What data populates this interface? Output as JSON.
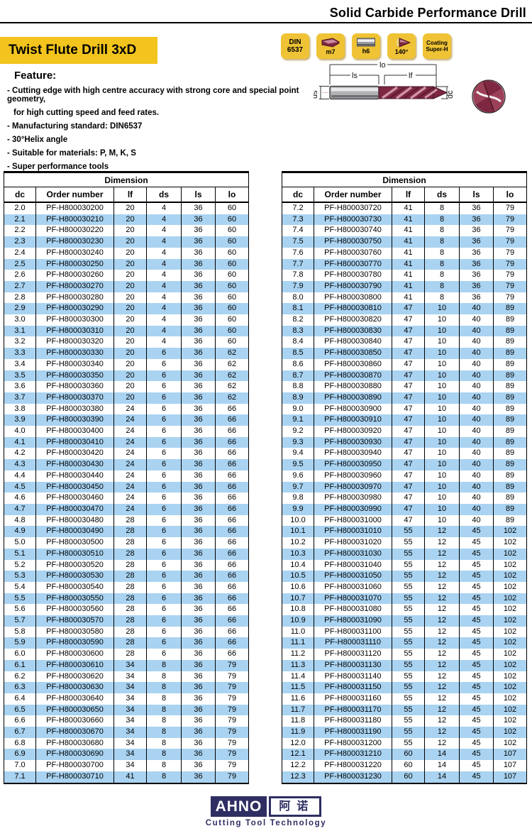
{
  "colors": {
    "accent_yellow": "#f2c41d",
    "badge_yellow": "#efc335",
    "row_blue": "#a9d3f1",
    "logo_navy": "#2e2e63",
    "drill_maroon": "#7e2741"
  },
  "header": {
    "title": "Solid Carbide Performance Drill"
  },
  "product": {
    "title": "Twist Flute Drill 3xD"
  },
  "badges": [
    {
      "line1": "DIN",
      "line2": "6537"
    },
    {
      "label": "m7"
    },
    {
      "label": "h6"
    },
    {
      "label": "140°"
    },
    {
      "line1": "Coating",
      "line2": "Super-H"
    }
  ],
  "features": {
    "heading": "Feature:",
    "lines": [
      "- Cutting edge with high centre accuracy with strong core and special point geometry,",
      "for high cutting speed and feed rates.",
      "- Manufacturing standard: DIN6537",
      "- 30°Helix angle",
      "- Suitable for materials: P, M, K, S",
      "- Super performance tools"
    ]
  },
  "diagram": {
    "labels": {
      "lo": "lo",
      "ls": "ls",
      "lf": "lf",
      "ds": "ds",
      "dc": "dc"
    }
  },
  "tables": [
    {
      "title": "Dimension",
      "columns": [
        "dc",
        "Order number",
        "lf",
        "ds",
        "ls",
        "lo"
      ],
      "rows": [
        [
          "2.0",
          "PF-H800030200",
          "20",
          "4",
          "36",
          "60"
        ],
        [
          "2.1",
          "PF-H800030210",
          "20",
          "4",
          "36",
          "60"
        ],
        [
          "2.2",
          "PF-H800030220",
          "20",
          "4",
          "36",
          "60"
        ],
        [
          "2.3",
          "PF-H800030230",
          "20",
          "4",
          "36",
          "60"
        ],
        [
          "2.4",
          "PF-H800030240",
          "20",
          "4",
          "36",
          "60"
        ],
        [
          "2.5",
          "PF-H800030250",
          "20",
          "4",
          "36",
          "60"
        ],
        [
          "2.6",
          "PF-H800030260",
          "20",
          "4",
          "36",
          "60"
        ],
        [
          "2.7",
          "PF-H800030270",
          "20",
          "4",
          "36",
          "60"
        ],
        [
          "2.8",
          "PF-H800030280",
          "20",
          "4",
          "36",
          "60"
        ],
        [
          "2.9",
          "PF-H800030290",
          "20",
          "4",
          "36",
          "60"
        ],
        [
          "3.0",
          "PF-H800030300",
          "20",
          "4",
          "36",
          "60"
        ],
        [
          "3.1",
          "PF-H800030310",
          "20",
          "4",
          "36",
          "60"
        ],
        [
          "3.2",
          "PF-H800030320",
          "20",
          "4",
          "36",
          "60"
        ],
        [
          "3.3",
          "PF-H800030330",
          "20",
          "6",
          "36",
          "62"
        ],
        [
          "3.4",
          "PF-H800030340",
          "20",
          "6",
          "36",
          "62"
        ],
        [
          "3.5",
          "PF-H800030350",
          "20",
          "6",
          "36",
          "62"
        ],
        [
          "3.6",
          "PF-H800030360",
          "20",
          "6",
          "36",
          "62"
        ],
        [
          "3.7",
          "PF-H800030370",
          "20",
          "6",
          "36",
          "62"
        ],
        [
          "3.8",
          "PF-H800030380",
          "24",
          "6",
          "36",
          "66"
        ],
        [
          "3.9",
          "PF-H800030390",
          "24",
          "6",
          "36",
          "66"
        ],
        [
          "4.0",
          "PF-H800030400",
          "24",
          "6",
          "36",
          "66"
        ],
        [
          "4.1",
          "PF-H800030410",
          "24",
          "6",
          "36",
          "66"
        ],
        [
          "4.2",
          "PF-H800030420",
          "24",
          "6",
          "36",
          "66"
        ],
        [
          "4.3",
          "PF-H800030430",
          "24",
          "6",
          "36",
          "66"
        ],
        [
          "4.4",
          "PF-H800030440",
          "24",
          "6",
          "36",
          "66"
        ],
        [
          "4.5",
          "PF-H800030450",
          "24",
          "6",
          "36",
          "66"
        ],
        [
          "4.6",
          "PF-H800030460",
          "24",
          "6",
          "36",
          "66"
        ],
        [
          "4.7",
          "PF-H800030470",
          "24",
          "6",
          "36",
          "66"
        ],
        [
          "4.8",
          "PF-H800030480",
          "28",
          "6",
          "36",
          "66"
        ],
        [
          "4.9",
          "PF-H800030490",
          "28",
          "6",
          "36",
          "66"
        ],
        [
          "5.0",
          "PF-H800030500",
          "28",
          "6",
          "36",
          "66"
        ],
        [
          "5.1",
          "PF-H800030510",
          "28",
          "6",
          "36",
          "66"
        ],
        [
          "5.2",
          "PF-H800030520",
          "28",
          "6",
          "36",
          "66"
        ],
        [
          "5.3",
          "PF-H800030530",
          "28",
          "6",
          "36",
          "66"
        ],
        [
          "5.4",
          "PF-H800030540",
          "28",
          "6",
          "36",
          "66"
        ],
        [
          "5.5",
          "PF-H800030550",
          "28",
          "6",
          "36",
          "66"
        ],
        [
          "5.6",
          "PF-H800030560",
          "28",
          "6",
          "36",
          "66"
        ],
        [
          "5.7",
          "PF-H800030570",
          "28",
          "6",
          "36",
          "66"
        ],
        [
          "5.8",
          "PF-H800030580",
          "28",
          "6",
          "36",
          "66"
        ],
        [
          "5.9",
          "PF-H800030590",
          "28",
          "6",
          "36",
          "66"
        ],
        [
          "6.0",
          "PF-H800030600",
          "28",
          "6",
          "36",
          "66"
        ],
        [
          "6.1",
          "PF-H800030610",
          "34",
          "8",
          "36",
          "79"
        ],
        [
          "6.2",
          "PF-H800030620",
          "34",
          "8",
          "36",
          "79"
        ],
        [
          "6.3",
          "PF-H800030630",
          "34",
          "8",
          "36",
          "79"
        ],
        [
          "6.4",
          "PF-H800030640",
          "34",
          "8",
          "36",
          "79"
        ],
        [
          "6.5",
          "PF-H800030650",
          "34",
          "8",
          "36",
          "79"
        ],
        [
          "6.6",
          "PF-H800030660",
          "34",
          "8",
          "36",
          "79"
        ],
        [
          "6.7",
          "PF-H800030670",
          "34",
          "8",
          "36",
          "79"
        ],
        [
          "6.8",
          "PF-H800030680",
          "34",
          "8",
          "36",
          "79"
        ],
        [
          "6.9",
          "PF-H800030690",
          "34",
          "8",
          "36",
          "79"
        ],
        [
          "7.0",
          "PF-H800030700",
          "34",
          "8",
          "36",
          "79"
        ],
        [
          "7.1",
          "PF-H800030710",
          "41",
          "8",
          "36",
          "79"
        ]
      ]
    },
    {
      "title": "Dimension",
      "columns": [
        "dc",
        "Order number",
        "lf",
        "ds",
        "ls",
        "lo"
      ],
      "rows": [
        [
          "7.2",
          "PF-H800030720",
          "41",
          "8",
          "36",
          "79"
        ],
        [
          "7.3",
          "PF-H800030730",
          "41",
          "8",
          "36",
          "79"
        ],
        [
          "7.4",
          "PF-H800030740",
          "41",
          "8",
          "36",
          "79"
        ],
        [
          "7.5",
          "PF-H800030750",
          "41",
          "8",
          "36",
          "79"
        ],
        [
          "7.6",
          "PF-H800030760",
          "41",
          "8",
          "36",
          "79"
        ],
        [
          "7.7",
          "PF-H800030770",
          "41",
          "8",
          "36",
          "79"
        ],
        [
          "7.8",
          "PF-H800030780",
          "41",
          "8",
          "36",
          "79"
        ],
        [
          "7.9",
          "PF-H800030790",
          "41",
          "8",
          "36",
          "79"
        ],
        [
          "8.0",
          "PF-H800030800",
          "41",
          "8",
          "36",
          "79"
        ],
        [
          "8.1",
          "PF-H800030810",
          "47",
          "10",
          "40",
          "89"
        ],
        [
          "8.2",
          "PF-H800030820",
          "47",
          "10",
          "40",
          "89"
        ],
        [
          "8.3",
          "PF-H800030830",
          "47",
          "10",
          "40",
          "89"
        ],
        [
          "8.4",
          "PF-H800030840",
          "47",
          "10",
          "40",
          "89"
        ],
        [
          "8.5",
          "PF-H800030850",
          "47",
          "10",
          "40",
          "89"
        ],
        [
          "8.6",
          "PF-H800030860",
          "47",
          "10",
          "40",
          "89"
        ],
        [
          "8.7",
          "PF-H800030870",
          "47",
          "10",
          "40",
          "89"
        ],
        [
          "8.8",
          "PF-H800030880",
          "47",
          "10",
          "40",
          "89"
        ],
        [
          "8.9",
          "PF-H800030890",
          "47",
          "10",
          "40",
          "89"
        ],
        [
          "9.0",
          "PF-H800030900",
          "47",
          "10",
          "40",
          "89"
        ],
        [
          "9.1",
          "PF-H800030910",
          "47",
          "10",
          "40",
          "89"
        ],
        [
          "9.2",
          "PF-H800030920",
          "47",
          "10",
          "40",
          "89"
        ],
        [
          "9.3",
          "PF-H800030930",
          "47",
          "10",
          "40",
          "89"
        ],
        [
          "9.4",
          "PF-H800030940",
          "47",
          "10",
          "40",
          "89"
        ],
        [
          "9.5",
          "PF-H800030950",
          "47",
          "10",
          "40",
          "89"
        ],
        [
          "9.6",
          "PF-H800030960",
          "47",
          "10",
          "40",
          "89"
        ],
        [
          "9.7",
          "PF-H800030970",
          "47",
          "10",
          "40",
          "89"
        ],
        [
          "9.8",
          "PF-H800030980",
          "47",
          "10",
          "40",
          "89"
        ],
        [
          "9.9",
          "PF-H800030990",
          "47",
          "10",
          "40",
          "89"
        ],
        [
          "10.0",
          "PF-H800031000",
          "47",
          "10",
          "40",
          "89"
        ],
        [
          "10.1",
          "PF-H800031010",
          "55",
          "12",
          "45",
          "102"
        ],
        [
          "10.2",
          "PF-H800031020",
          "55",
          "12",
          "45",
          "102"
        ],
        [
          "10.3",
          "PF-H800031030",
          "55",
          "12",
          "45",
          "102"
        ],
        [
          "10.4",
          "PF-H800031040",
          "55",
          "12",
          "45",
          "102"
        ],
        [
          "10.5",
          "PF-H800031050",
          "55",
          "12",
          "45",
          "102"
        ],
        [
          "10.6",
          "PF-H800031060",
          "55",
          "12",
          "45",
          "102"
        ],
        [
          "10.7",
          "PF-H800031070",
          "55",
          "12",
          "45",
          "102"
        ],
        [
          "10.8",
          "PF-H800031080",
          "55",
          "12",
          "45",
          "102"
        ],
        [
          "10.9",
          "PF-H800031090",
          "55",
          "12",
          "45",
          "102"
        ],
        [
          "11.0",
          "PF-H800031100",
          "55",
          "12",
          "45",
          "102"
        ],
        [
          "11.1",
          "PF-H800031110",
          "55",
          "12",
          "45",
          "102"
        ],
        [
          "11.2",
          "PF-H800031120",
          "55",
          "12",
          "45",
          "102"
        ],
        [
          "11.3",
          "PF-H800031130",
          "55",
          "12",
          "45",
          "102"
        ],
        [
          "11.4",
          "PF-H800031140",
          "55",
          "12",
          "45",
          "102"
        ],
        [
          "11.5",
          "PF-H800031150",
          "55",
          "12",
          "45",
          "102"
        ],
        [
          "11.6",
          "PF-H800031160",
          "55",
          "12",
          "45",
          "102"
        ],
        [
          "11.7",
          "PF-H800031170",
          "55",
          "12",
          "45",
          "102"
        ],
        [
          "11.8",
          "PF-H800031180",
          "55",
          "12",
          "45",
          "102"
        ],
        [
          "11.9",
          "PF-H800031190",
          "55",
          "12",
          "45",
          "102"
        ],
        [
          "12.0",
          "PF-H800031200",
          "55",
          "12",
          "45",
          "102"
        ],
        [
          "12.1",
          "PF-H800031210",
          "60",
          "14",
          "45",
          "107"
        ],
        [
          "12.2",
          "PF-H800031220",
          "60",
          "14",
          "45",
          "107"
        ],
        [
          "12.3",
          "PF-H800031230",
          "60",
          "14",
          "45",
          "107"
        ]
      ]
    }
  ],
  "footer": {
    "brand": "AHNO",
    "brand_cn": "阿诺",
    "tagline": "Cutting Tool Technology"
  }
}
